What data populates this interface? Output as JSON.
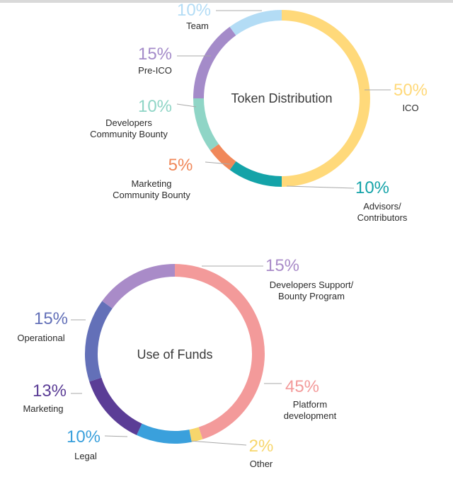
{
  "chart_data": [
    {
      "type": "pie",
      "title": "Token Distribution",
      "slices": [
        {
          "label": "ICO",
          "value": 50,
          "pct_text": "50%",
          "color": "#ffd97a"
        },
        {
          "label": "Advisors/ Contributors",
          "label_lines": [
            "Advisors/",
            "Contributors"
          ],
          "value": 10,
          "pct_text": "10%",
          "color": "#14a3a8"
        },
        {
          "label": "Marketing Community Bounty",
          "label_lines": [
            "Marketing",
            "Community Bounty"
          ],
          "value": 5,
          "pct_text": "5%",
          "color": "#f0885a"
        },
        {
          "label": "Developers Community Bounty",
          "label_lines": [
            "Developers",
            "Community Bounty"
          ],
          "value": 10,
          "pct_text": "10%",
          "color": "#8fd5c6"
        },
        {
          "label": "Pre-ICO",
          "value": 15,
          "pct_text": "15%",
          "color": "#a48bc9"
        },
        {
          "label": "Team",
          "value": 10,
          "pct_text": "10%",
          "color": "#b3dcf5"
        }
      ]
    },
    {
      "type": "pie",
      "title": "Use of Funds",
      "slices": [
        {
          "label": "Platform development",
          "label_lines": [
            "Platform",
            "development"
          ],
          "value": 45,
          "pct_text": "45%",
          "color": "#f39a9a"
        },
        {
          "label": "Other",
          "value": 2,
          "pct_text": "2%",
          "color": "#f7d66c"
        },
        {
          "label": "Legal",
          "value": 10,
          "pct_text": "10%",
          "color": "#3aa0dc"
        },
        {
          "label": "Marketing",
          "value": 13,
          "pct_text": "13%",
          "color": "#5b3d96"
        },
        {
          "label": "Operational",
          "value": 15,
          "pct_text": "15%",
          "color": "#6370b8"
        },
        {
          "label": "Developers Support/ Bounty Program",
          "label_lines": [
            "Developers Support/",
            "Bounty Program"
          ],
          "value": 15,
          "pct_text": "15%",
          "color": "#a98bc8"
        }
      ]
    }
  ]
}
